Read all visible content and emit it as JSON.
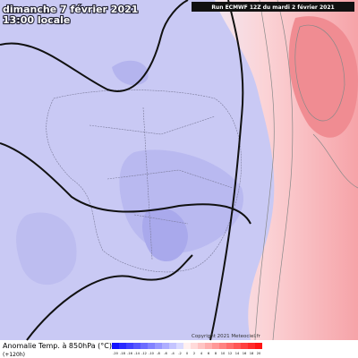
{
  "header": {
    "date": "dimanche 7 février 2021",
    "time": "13:00 locale",
    "run": "Run ECMWF 12Z du mardi 2 février 2021"
  },
  "footer": {
    "title": "Anomalie Temp. à 850hPa (°C)",
    "lead": "(+120h)",
    "copyright": "Copyright 2021 Meteociel.fr"
  },
  "legend": {
    "labels": [
      -20,
      -18,
      -16,
      -14,
      -12,
      -10,
      -8,
      -6,
      -4,
      -2,
      0,
      2,
      4,
      6,
      8,
      10,
      12,
      14,
      16,
      18,
      20
    ]
  }
}
